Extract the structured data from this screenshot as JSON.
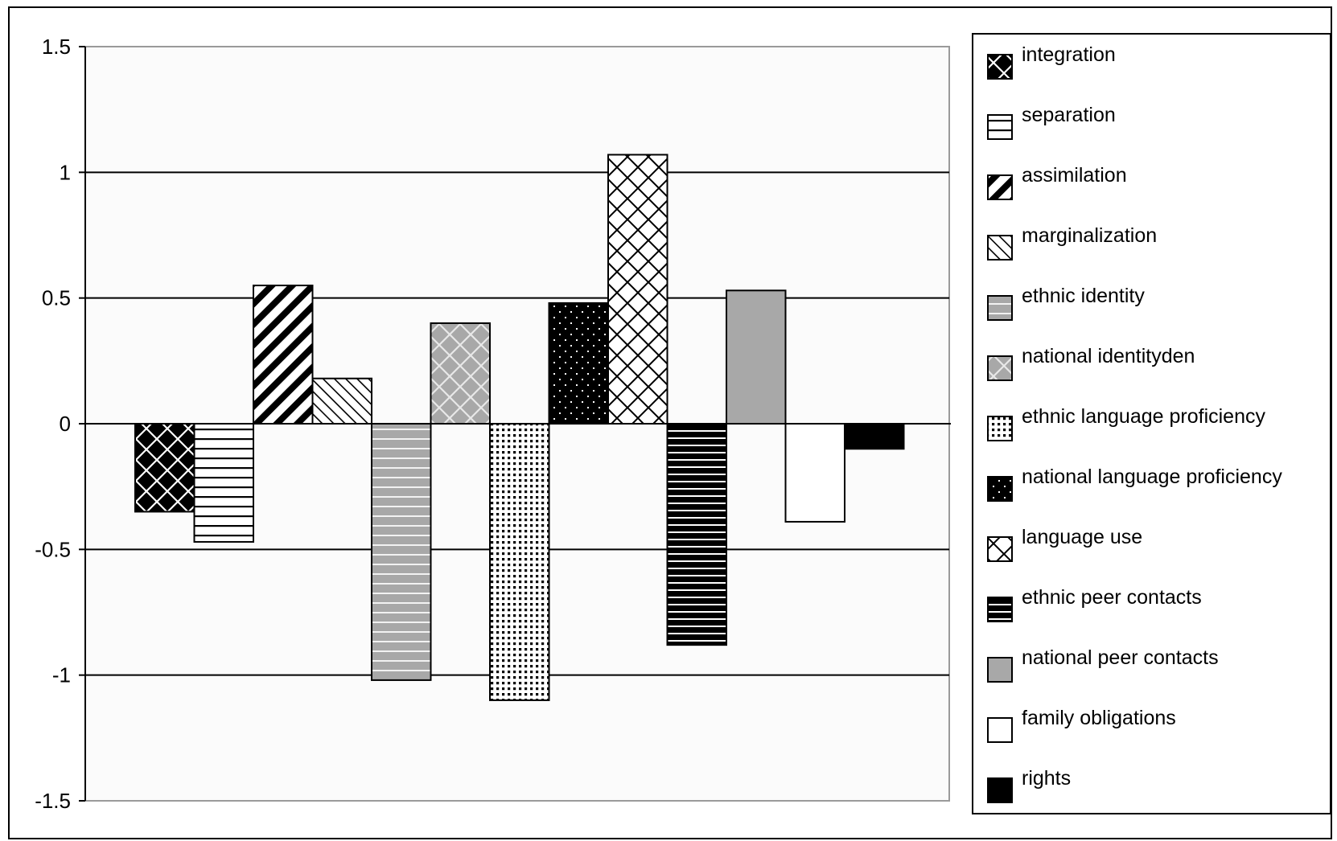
{
  "chart_data": {
    "type": "bar",
    "title": "",
    "xlabel": "",
    "ylabel": "",
    "ylim": [
      -1.5,
      1.5
    ],
    "yticks": [
      1.5,
      1,
      0.5,
      0,
      -0.5,
      -1,
      -1.5
    ],
    "ytick_labels": [
      "1.5",
      "1",
      "0.5",
      "0",
      "-0.5",
      "-1",
      "-1.5"
    ],
    "grid": "horizontal major gridlines",
    "legend_position": "right",
    "series": [
      {
        "name": "integration",
        "value": -0.35,
        "pattern": "diamond-black"
      },
      {
        "name": "separation",
        "value": -0.47,
        "pattern": "hlines-wide"
      },
      {
        "name": "assimilation",
        "value": 0.55,
        "pattern": "diag-wide"
      },
      {
        "name": "marginalization",
        "value": 0.18,
        "pattern": "diag-light"
      },
      {
        "name": "ethnic identity",
        "value": -1.02,
        "pattern": "hlines-gray"
      },
      {
        "name": "national identityden",
        "value": 0.4,
        "pattern": "diamond-gray"
      },
      {
        "name": "ethnic language proficiency",
        "value": -1.1,
        "pattern": "dots-dense"
      },
      {
        "name": "national language proficiency",
        "value": 0.48,
        "pattern": "dots-sparse-black"
      },
      {
        "name": "language use",
        "value": 1.07,
        "pattern": "diamond-white"
      },
      {
        "name": "ethnic peer contacts",
        "value": -0.88,
        "pattern": "hlines-black"
      },
      {
        "name": "national peer contacts",
        "value": 0.53,
        "pattern": "solid-gray"
      },
      {
        "name": "family obligations",
        "value": -0.39,
        "pattern": "solid-white"
      },
      {
        "name": "rights",
        "value": -0.1,
        "pattern": "solid-black"
      }
    ]
  }
}
